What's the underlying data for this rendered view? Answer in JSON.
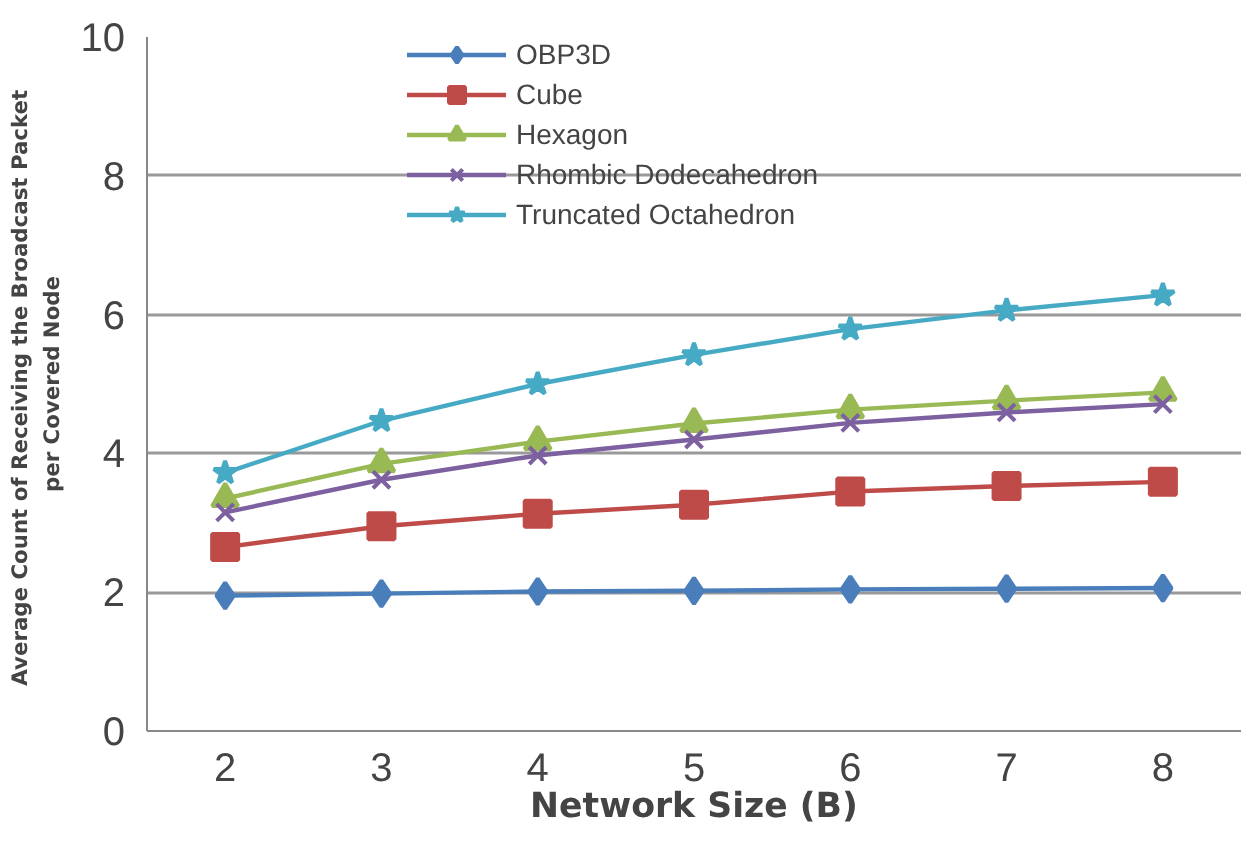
{
  "chart_data": {
    "type": "line",
    "xlabel": "Network Size (B)",
    "ylabel": "Average Count  of Receiving the Broadcast Packet\nper Covered Node",
    "categories": [
      "2",
      "3",
      "4",
      "5",
      "6",
      "7",
      "8"
    ],
    "series": [
      {
        "name": "OBP3D",
        "color": "#4a7ebb",
        "marker": "diamond",
        "values": [
          1.95,
          1.98,
          2.01,
          2.02,
          2.04,
          2.05,
          2.06
        ]
      },
      {
        "name": "Cube",
        "color": "#be4b48",
        "marker": "square",
        "values": [
          2.65,
          2.95,
          3.13,
          3.26,
          3.45,
          3.53,
          3.59
        ]
      },
      {
        "name": "Hexagon",
        "color": "#98b954",
        "marker": "triangle",
        "values": [
          3.35,
          3.85,
          4.17,
          4.43,
          4.63,
          4.76,
          4.88
        ]
      },
      {
        "name": "Rhombic Dodecahedron",
        "color": "#7d60a0",
        "marker": "cross",
        "values": [
          3.15,
          3.62,
          3.97,
          4.2,
          4.44,
          4.59,
          4.71
        ]
      },
      {
        "name": "Truncated Octahedron",
        "color": "#46aac5",
        "marker": "star",
        "values": [
          3.72,
          4.47,
          5.0,
          5.42,
          5.79,
          6.06,
          6.28
        ]
      }
    ],
    "ylim": [
      0,
      10
    ],
    "yticks": [
      0,
      2,
      4,
      6,
      8,
      10
    ],
    "grid": "y",
    "legend": "top left",
    "line_style": "solid"
  }
}
